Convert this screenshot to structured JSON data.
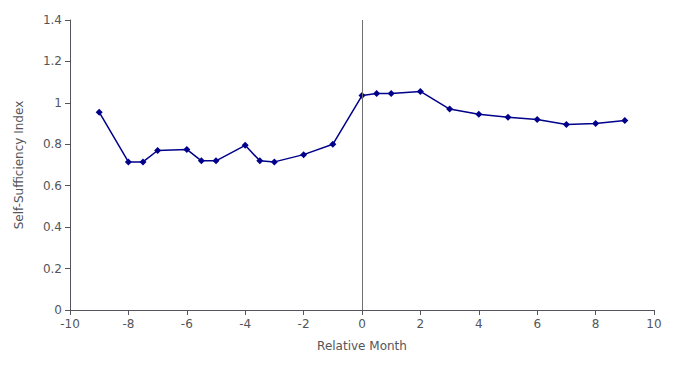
{
  "chart_data": {
    "type": "line",
    "x": [
      -9,
      -8,
      -7.5,
      -7,
      -6,
      -5.5,
      -5,
      -4,
      -3.5,
      -3,
      -2,
      -1,
      0,
      0.5,
      1,
      2,
      3,
      4,
      5,
      6,
      7,
      8,
      9
    ],
    "values": [
      0.955,
      0.715,
      0.715,
      0.77,
      0.775,
      0.72,
      0.72,
      0.795,
      0.72,
      0.715,
      0.75,
      0.8,
      1.035,
      1.045,
      1.045,
      1.055,
      0.97,
      0.945,
      0.93,
      0.92,
      0.895,
      0.9,
      0.915
    ],
    "color": "#00008B",
    "marker": "diamond",
    "vline": {
      "x": 0,
      "color": "#707070"
    },
    "xlabel": "Relative Month",
    "ylabel": "Self-Sufficiency Index",
    "xlim": [
      -10,
      10
    ],
    "xticks": [
      -10,
      -8,
      -6,
      -4,
      -2,
      0,
      2,
      4,
      6,
      8,
      10
    ],
    "ylim": [
      0,
      1.4
    ],
    "yticks": [
      0,
      0.2,
      0.4,
      0.6,
      0.8,
      1.0,
      1.2,
      1.4
    ],
    "grid": false
  }
}
